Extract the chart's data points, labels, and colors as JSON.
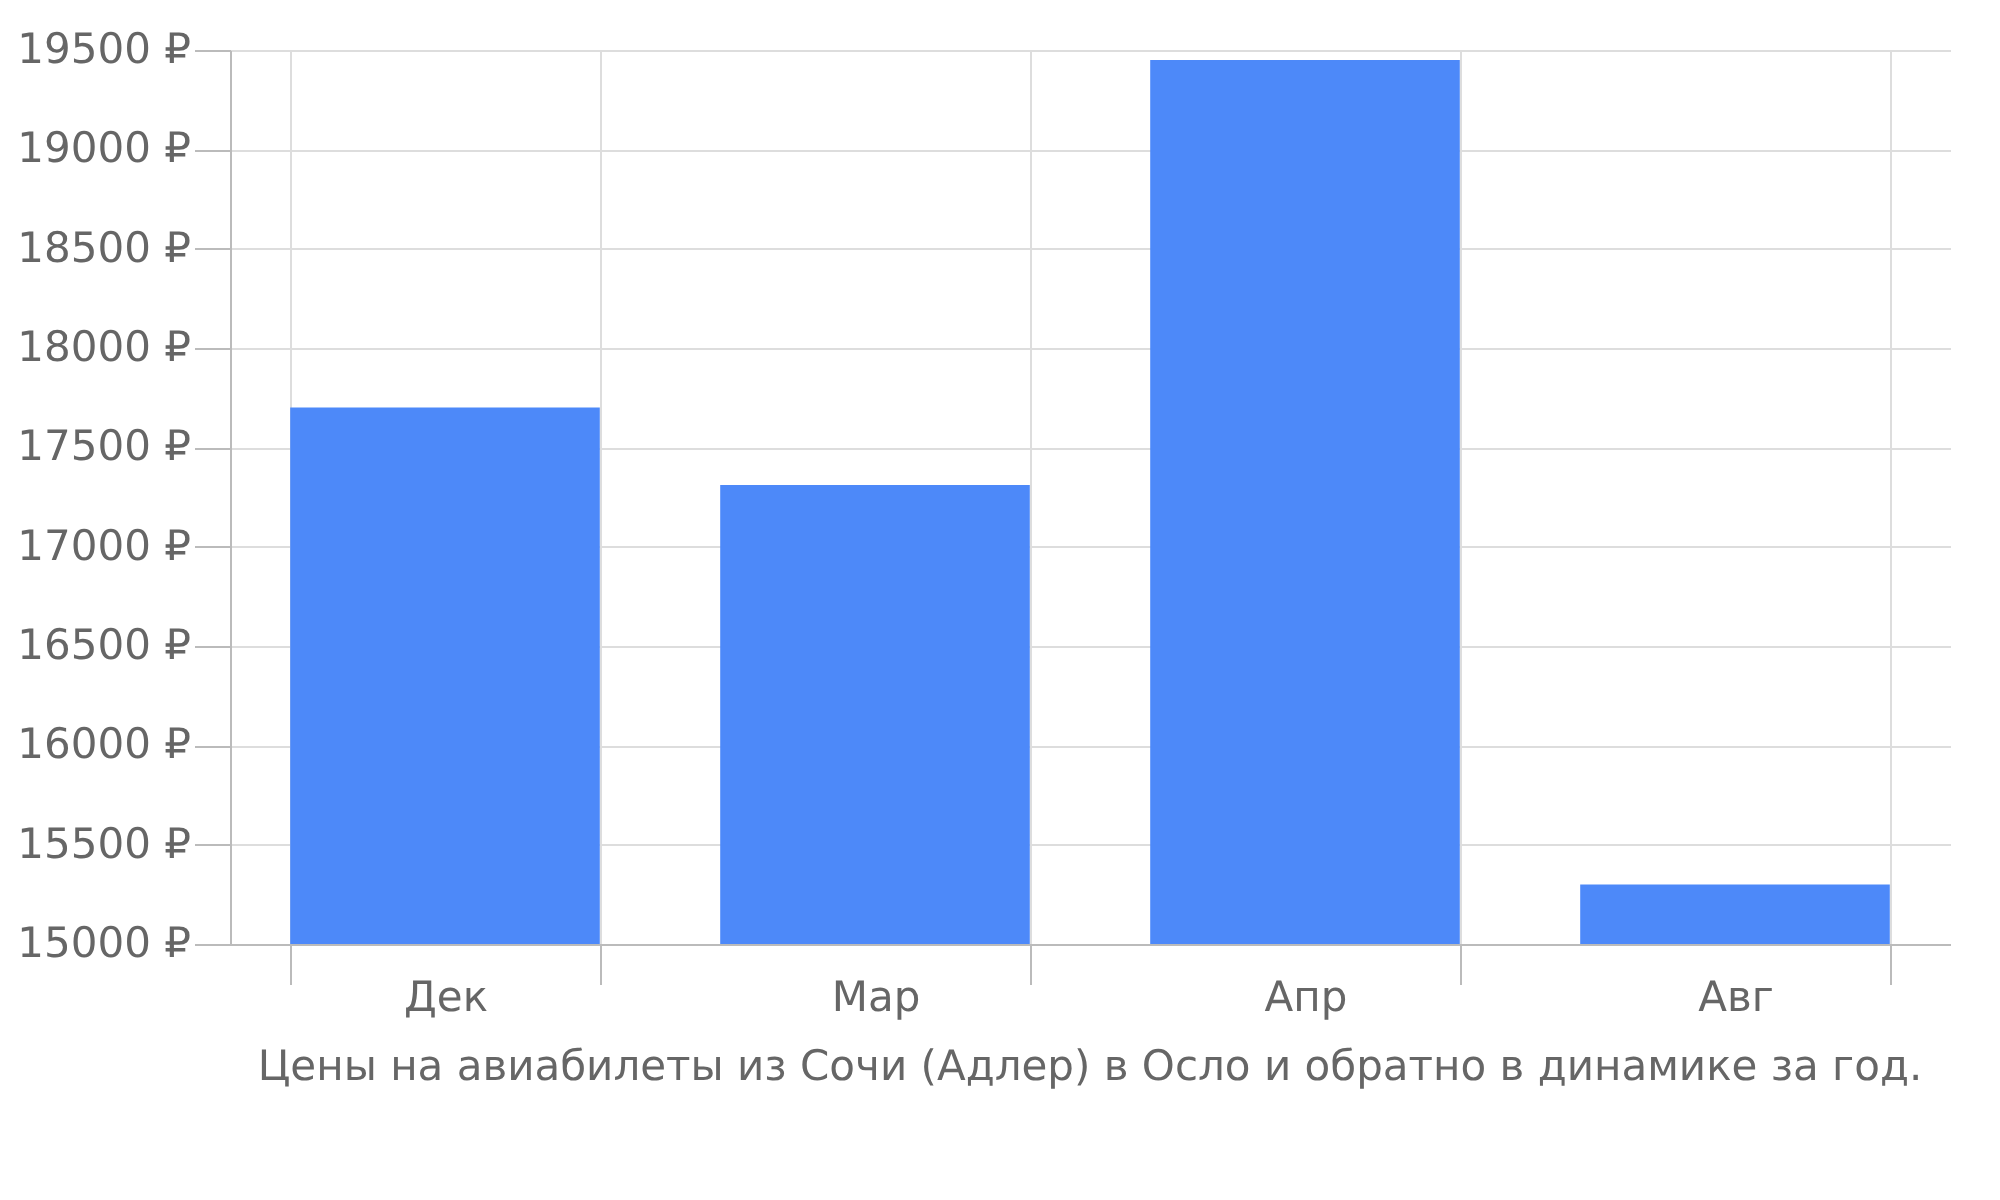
{
  "chart_data": {
    "type": "bar",
    "title": "Цены на авиабилеты из Сочи (Адлер) в Осло и обратно в динамике за год.",
    "categories": [
      "Дек",
      "Мар",
      "Апр",
      "Авг"
    ],
    "values": [
      17700,
      17310,
      19450,
      15300
    ],
    "color": "#4d89f9",
    "ylim": [
      15000,
      19500
    ],
    "yticks": [
      {
        "value": 15000,
        "label": "15000 ₽"
      },
      {
        "value": 15500,
        "label": "15500 ₽"
      },
      {
        "value": 16000,
        "label": "16000 ₽"
      },
      {
        "value": 16500,
        "label": "16500 ₽"
      },
      {
        "value": 17000,
        "label": "17000 ₽"
      },
      {
        "value": 17500,
        "label": "17500 ₽"
      },
      {
        "value": 18000,
        "label": "18000 ₽"
      },
      {
        "value": 18500,
        "label": "18500 ₽"
      },
      {
        "value": 19000,
        "label": "19000 ₽"
      },
      {
        "value": 19500,
        "label": "19500 ₽"
      }
    ],
    "grid": true
  }
}
